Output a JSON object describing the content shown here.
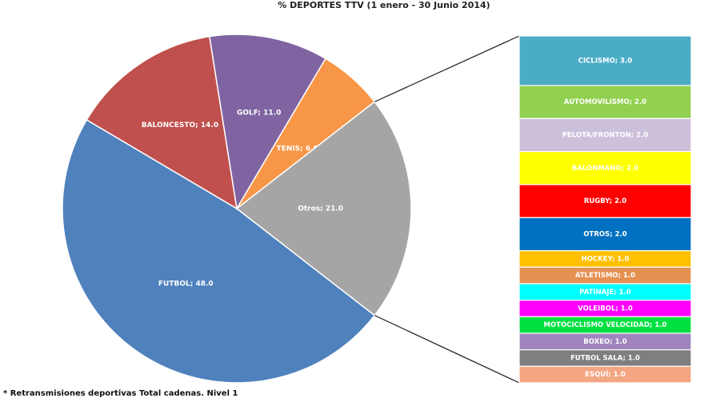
{
  "chart_data": {
    "type": "pie",
    "title": "% DEPORTES TTV (1 enero - 30 Junio 2014)",
    "slices": [
      {
        "label": "FUTBOL; 48.0",
        "name": "FUTBOL",
        "value": 48.0,
        "color": "#4F81BD"
      },
      {
        "label": "BALONCESTO; 14.0",
        "name": "BALONCESTO",
        "value": 14.0,
        "color": "#C0504D"
      },
      {
        "label": "GOLF; 11.0",
        "name": "GOLF",
        "value": 11.0,
        "color": "#8064A2"
      },
      {
        "label": "TENIS; 6.0",
        "name": "TENIS",
        "value": 6.0,
        "color": "#F79646"
      },
      {
        "label": "Otros; 21.0",
        "name": "Otros",
        "value": 21.0,
        "color": "#A5A5A5"
      }
    ],
    "breakdown": [
      {
        "label": "CICLISMO; 3.0",
        "name": "CICLISMO",
        "value": 3.0,
        "color": "#4BACC6"
      },
      {
        "label": "AUTOMOVILISMO; 2.0",
        "name": "AUTOMOVILISMO",
        "value": 2.0,
        "color": "#92D050"
      },
      {
        "label": "PELOTA/FRONTON; 2.0",
        "name": "PELOTA/FRONTON",
        "value": 2.0,
        "color": "#CCC0DA"
      },
      {
        "label": "BALONMANO; 2.0",
        "name": "BALONMANO",
        "value": 2.0,
        "color": "#FFFF00"
      },
      {
        "label": "RUGBY; 2.0",
        "name": "RUGBY",
        "value": 2.0,
        "color": "#FF0000"
      },
      {
        "label": "OTROS; 2.0",
        "name": "OTROS",
        "value": 2.0,
        "color": "#0070C0"
      },
      {
        "label": "HOCKEY; 1.0",
        "name": "HOCKEY",
        "value": 1.0,
        "color": "#FFC000"
      },
      {
        "label": "ATLETISMO; 1.0",
        "name": "ATLETISMO",
        "value": 1.0,
        "color": "#E69052"
      },
      {
        "label": "PATINAJE; 1.0",
        "name": "PATINAJE",
        "value": 1.0,
        "color": "#00FFFF"
      },
      {
        "label": "VOLEIBOL; 1.0",
        "name": "VOLEIBOL",
        "value": 1.0,
        "color": "#FF00FF"
      },
      {
        "label": "MOTOCICLISMO VELOCIDAD; 1.0",
        "name": "MOTOCICLISMO VELOCIDAD",
        "value": 1.0,
        "color": "#00E040"
      },
      {
        "label": "BOXEO; 1.0",
        "name": "BOXEO",
        "value": 1.0,
        "color": "#9F84BD"
      },
      {
        "label": "FUTBOL SALA; 1.0",
        "name": "FUTBOL SALA",
        "value": 1.0,
        "color": "#7F7F7F"
      },
      {
        "label": "ESQUÍ; 1.0",
        "name": "ESQUÍ",
        "value": 1.0,
        "color": "#F4A582"
      }
    ],
    "footnote": "* Retransmisiones deportivas Total cadenas. Nivel 1"
  }
}
